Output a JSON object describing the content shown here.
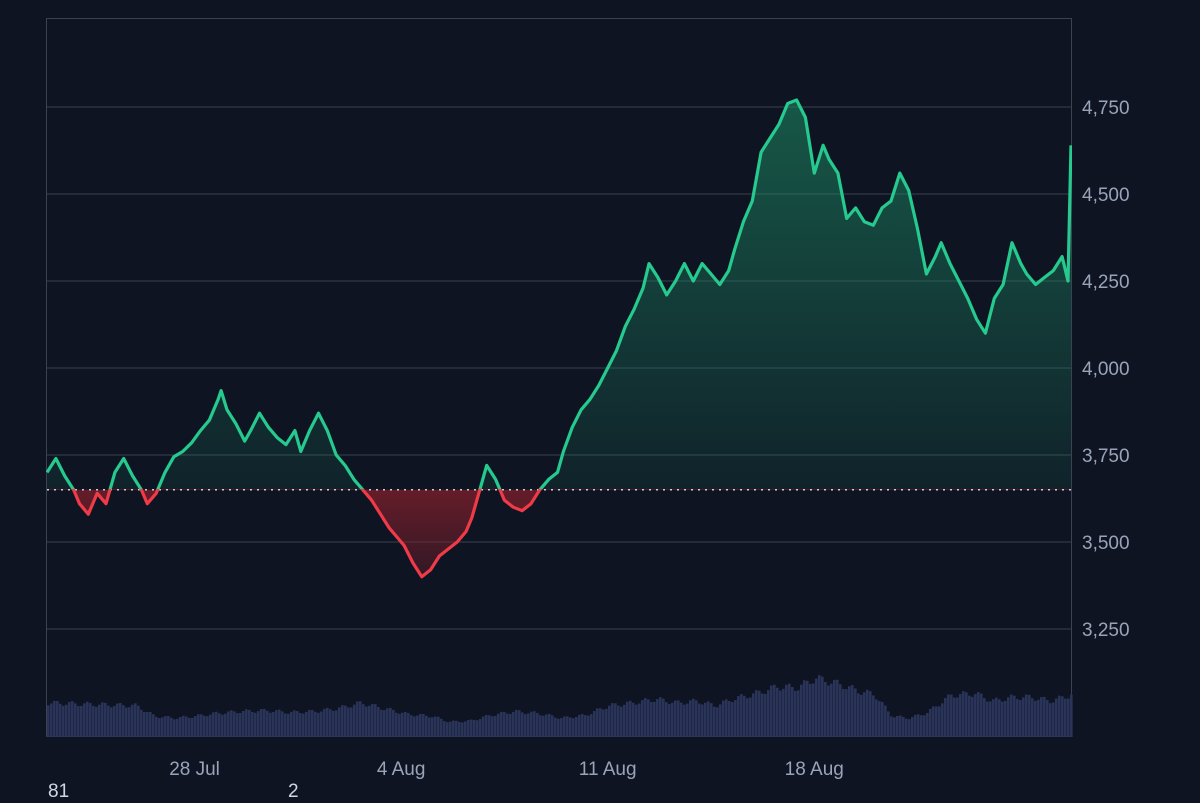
{
  "chart_data": {
    "type": "area",
    "title": "",
    "xlabel": "",
    "ylabel": "",
    "x_ticks": [
      "28 Jul",
      "4 Aug",
      "11 Aug",
      "18 Aug"
    ],
    "y_ticks": [
      "3,250",
      "3,500",
      "3,750",
      "4,000",
      "4,250",
      "4,500",
      "4,750"
    ],
    "ylim": [
      3000,
      5000
    ],
    "xlim": [
      "23 Jul",
      "24 Aug"
    ],
    "baseline": 3650,
    "grid": true,
    "up_color": "#26c98e",
    "down_color": "#ef3b48",
    "volume_color": "#2a3459",
    "series": [
      {
        "values": [
          [
            23.0,
            3700
          ],
          [
            23.3,
            3740
          ],
          [
            23.6,
            3690
          ],
          [
            23.9,
            3650
          ],
          [
            24.1,
            3610
          ],
          [
            24.4,
            3580
          ],
          [
            24.7,
            3640
          ],
          [
            25.0,
            3610
          ],
          [
            25.3,
            3700
          ],
          [
            25.6,
            3740
          ],
          [
            25.9,
            3690
          ],
          [
            26.2,
            3650
          ],
          [
            26.4,
            3610
          ],
          [
            26.7,
            3640
          ],
          [
            27.0,
            3700
          ],
          [
            27.3,
            3745
          ],
          [
            27.6,
            3760
          ],
          [
            27.9,
            3785
          ],
          [
            28.2,
            3820
          ],
          [
            28.5,
            3850
          ],
          [
            28.8,
            3910
          ],
          [
            28.9,
            3935
          ],
          [
            29.1,
            3880
          ],
          [
            29.4,
            3840
          ],
          [
            29.7,
            3790
          ],
          [
            29.9,
            3820
          ],
          [
            30.2,
            3870
          ],
          [
            30.5,
            3830
          ],
          [
            30.8,
            3800
          ],
          [
            31.1,
            3780
          ],
          [
            31.4,
            3820
          ],
          [
            31.6,
            3760
          ],
          [
            31.9,
            3820
          ],
          [
            32.2,
            3870
          ],
          [
            32.5,
            3820
          ],
          [
            32.8,
            3750
          ],
          [
            33.1,
            3720
          ],
          [
            33.4,
            3680
          ],
          [
            33.7,
            3650
          ],
          [
            34.0,
            3620
          ],
          [
            34.3,
            3580
          ],
          [
            34.6,
            3540
          ],
          [
            34.9,
            3510
          ],
          [
            35.1,
            3490
          ],
          [
            35.4,
            3440
          ],
          [
            35.7,
            3400
          ],
          [
            36.0,
            3420
          ],
          [
            36.3,
            3460
          ],
          [
            36.6,
            3480
          ],
          [
            36.9,
            3500
          ],
          [
            37.2,
            3530
          ],
          [
            37.4,
            3570
          ],
          [
            37.7,
            3660
          ],
          [
            37.9,
            3720
          ],
          [
            38.2,
            3680
          ],
          [
            38.5,
            3620
          ],
          [
            38.8,
            3600
          ],
          [
            39.1,
            3590
          ],
          [
            39.4,
            3610
          ],
          [
            39.7,
            3650
          ],
          [
            40.0,
            3680
          ],
          [
            40.3,
            3700
          ],
          [
            40.5,
            3760
          ],
          [
            40.8,
            3830
          ],
          [
            41.1,
            3880
          ],
          [
            41.4,
            3910
          ],
          [
            41.7,
            3950
          ],
          [
            42.0,
            4000
          ],
          [
            42.3,
            4050
          ],
          [
            42.6,
            4120
          ],
          [
            42.9,
            4170
          ],
          [
            43.2,
            4230
          ],
          [
            43.4,
            4300
          ],
          [
            43.7,
            4260
          ],
          [
            44.0,
            4210
          ],
          [
            44.3,
            4250
          ],
          [
            44.6,
            4300
          ],
          [
            44.9,
            4250
          ],
          [
            45.2,
            4300
          ],
          [
            45.5,
            4270
          ],
          [
            45.8,
            4240
          ],
          [
            46.1,
            4280
          ],
          [
            46.3,
            4340
          ],
          [
            46.6,
            4420
          ],
          [
            46.9,
            4480
          ],
          [
            47.2,
            4620
          ],
          [
            47.5,
            4660
          ],
          [
            47.8,
            4700
          ],
          [
            48.1,
            4760
          ],
          [
            48.4,
            4770
          ],
          [
            48.7,
            4720
          ],
          [
            49.0,
            4560
          ],
          [
            49.3,
            4640
          ],
          [
            49.5,
            4600
          ],
          [
            49.8,
            4560
          ],
          [
            50.1,
            4430
          ],
          [
            50.4,
            4460
          ],
          [
            50.7,
            4420
          ],
          [
            51.0,
            4410
          ],
          [
            51.3,
            4460
          ],
          [
            51.6,
            4480
          ],
          [
            51.9,
            4560
          ],
          [
            52.2,
            4510
          ],
          [
            52.5,
            4400
          ],
          [
            52.8,
            4270
          ],
          [
            53.1,
            4320
          ],
          [
            53.3,
            4360
          ],
          [
            53.6,
            4300
          ],
          [
            53.9,
            4250
          ],
          [
            54.2,
            4200
          ],
          [
            54.5,
            4140
          ],
          [
            54.8,
            4100
          ],
          [
            55.1,
            4200
          ],
          [
            55.4,
            4240
          ],
          [
            55.7,
            4360
          ],
          [
            56.0,
            4300
          ],
          [
            56.2,
            4270
          ],
          [
            56.5,
            4240
          ],
          [
            56.8,
            4260
          ],
          [
            57.1,
            4280
          ],
          [
            57.4,
            4320
          ],
          [
            57.6,
            4250
          ],
          [
            57.7,
            4640
          ]
        ]
      }
    ],
    "volume": [
      [
        23.0,
        0.36
      ],
      [
        24.0,
        0.35
      ],
      [
        25.0,
        0.34
      ],
      [
        26.0,
        0.33
      ],
      [
        26.6,
        0.22
      ],
      [
        27.3,
        0.2
      ],
      [
        28.0,
        0.22
      ],
      [
        28.7,
        0.25
      ],
      [
        29.5,
        0.27
      ],
      [
        30.4,
        0.28
      ],
      [
        31.2,
        0.26
      ],
      [
        32.0,
        0.27
      ],
      [
        32.8,
        0.3
      ],
      [
        33.6,
        0.36
      ],
      [
        34.4,
        0.3
      ],
      [
        35.2,
        0.24
      ],
      [
        36.0,
        0.22
      ],
      [
        36.6,
        0.16
      ],
      [
        37.3,
        0.17
      ],
      [
        38.0,
        0.23
      ],
      [
        38.8,
        0.27
      ],
      [
        39.6,
        0.25
      ],
      [
        40.4,
        0.2
      ],
      [
        41.2,
        0.23
      ],
      [
        42.0,
        0.33
      ],
      [
        42.8,
        0.36
      ],
      [
        43.6,
        0.4
      ],
      [
        44.3,
        0.36
      ],
      [
        45.0,
        0.38
      ],
      [
        45.6,
        0.33
      ],
      [
        46.2,
        0.4
      ],
      [
        47.0,
        0.46
      ],
      [
        47.7,
        0.53
      ],
      [
        48.4,
        0.52
      ],
      [
        49.0,
        0.62
      ],
      [
        49.8,
        0.56
      ],
      [
        50.5,
        0.48
      ],
      [
        51.0,
        0.45
      ],
      [
        51.6,
        0.22
      ],
      [
        52.2,
        0.2
      ],
      [
        52.8,
        0.26
      ],
      [
        53.6,
        0.44
      ],
      [
        54.4,
        0.46
      ],
      [
        55.0,
        0.38
      ],
      [
        55.7,
        0.42
      ],
      [
        56.3,
        0.42
      ],
      [
        57.0,
        0.38
      ],
      [
        57.7,
        0.45
      ]
    ]
  },
  "footer": {
    "left": "81",
    "mid": "2"
  }
}
